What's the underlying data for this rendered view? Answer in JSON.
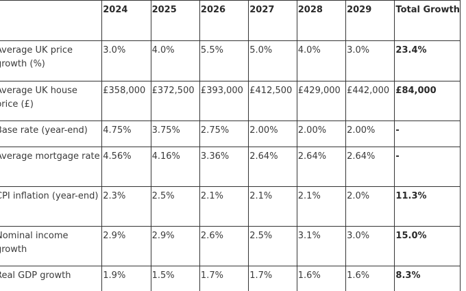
{
  "table": {
    "headers": [
      "",
      "2024",
      "2025",
      "2026",
      "2027",
      "2028",
      "2029",
      "Total Growth"
    ],
    "rows": [
      {
        "label": "Average UK price growth (%)",
        "values": [
          "3.0%",
          "4.0%",
          "5.5%",
          "5.0%",
          "4.0%",
          "3.0%"
        ],
        "total": "23.4%"
      },
      {
        "label": "Average UK house price (£)",
        "values": [
          "£358,000",
          "£372,500",
          "£393,000",
          "£412,500",
          "£429,000",
          "£442,000"
        ],
        "total": "£84,000"
      },
      {
        "label": "Base rate (year-end)",
        "values": [
          "4.75%",
          "3.75%",
          "2.75%",
          "2.00%",
          "2.00%",
          "2.00%"
        ],
        "total": "-"
      },
      {
        "label": "Average mortgage rate",
        "values": [
          "4.56%",
          "4.16%",
          "3.36%",
          "2.64%",
          "2.64%",
          "2.64%"
        ],
        "total": "-"
      },
      {
        "label": "CPI inflation (year-end)",
        "values": [
          "2.3%",
          "2.5%",
          "2.1%",
          "2.1%",
          "2.1%",
          "2.0%"
        ],
        "total": "11.3%"
      },
      {
        "label": "Nominal income growth",
        "values": [
          "2.9%",
          "2.9%",
          "2.6%",
          "2.5%",
          "3.1%",
          "3.0%"
        ],
        "total": "15.0%"
      },
      {
        "label": "Real GDP growth",
        "values": [
          "1.9%",
          "1.5%",
          "1.7%",
          "1.7%",
          "1.6%",
          "1.6%"
        ],
        "total": "8.3%"
      }
    ]
  }
}
